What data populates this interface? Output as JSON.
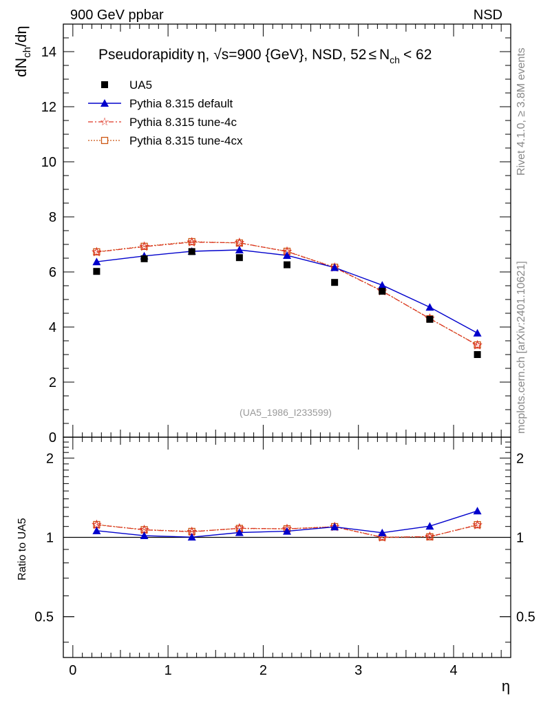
{
  "header": {
    "left": "900 GeV ppbar",
    "right": "NSD"
  },
  "side_text": {
    "rivet": "Rivet 4.1.0, ≥ 3.8M events",
    "mcplots": "mcplots.cern.ch [arXiv:2401.10621]"
  },
  "title": {
    "prefix": "Pseudorapidity",
    "eta": "η",
    "sqrt_s": "√s",
    "energy": "=900 {GeV}, NSD, 52",
    "le": "≤",
    "n": "N",
    "ch": "ch",
    "suffix": "< 62"
  },
  "source_label": "(UA5_1986_I233599)",
  "colors": {
    "data": "#000000",
    "default": "#0000cc",
    "tune4c": "#dd3322",
    "tune4cx": "#cc5511",
    "axis": "#000000",
    "side_text": "#888888"
  },
  "chart_data": [
    {
      "type": "scatter",
      "panel": "main",
      "ylabel": {
        "base": "dN",
        "sub": "ch",
        "rest": "/dη"
      },
      "xlim": [
        -0.1,
        4.6
      ],
      "ylim": [
        0,
        15
      ],
      "yticks": [
        {
          "v": 0,
          "label": "0"
        },
        {
          "v": 2,
          "label": "2"
        },
        {
          "v": 4,
          "label": "4"
        },
        {
          "v": 6,
          "label": "6"
        },
        {
          "v": 8,
          "label": "8"
        },
        {
          "v": 10,
          "label": "10"
        },
        {
          "v": 12,
          "label": "12"
        },
        {
          "v": 14,
          "label": "14"
        }
      ],
      "x": [
        0.25,
        0.75,
        1.25,
        1.75,
        2.25,
        2.75,
        3.25,
        3.75,
        4.25
      ],
      "series": [
        {
          "key": "ua5",
          "name": "UA5",
          "style": "data",
          "values": [
            6.02,
            6.48,
            6.74,
            6.52,
            6.26,
            5.62,
            5.3,
            4.28,
            3.0
          ]
        },
        {
          "key": "default",
          "name": "Pythia 8.315 default",
          "style": "line-triangle",
          "values": [
            6.37,
            6.58,
            6.75,
            6.8,
            6.6,
            6.16,
            5.52,
            4.72,
            3.78
          ]
        },
        {
          "key": "tune4c",
          "name": "Pythia 8.315 tune-4c",
          "style": "dashdot-star",
          "values": [
            6.72,
            6.92,
            7.08,
            7.06,
            6.74,
            6.16,
            5.3,
            4.31,
            3.34
          ]
        },
        {
          "key": "tune4cx",
          "name": "Pythia 8.315 tune-4cx",
          "style": "dotted-square",
          "values": [
            6.73,
            6.93,
            7.1,
            7.05,
            6.75,
            6.17,
            5.31,
            4.3,
            3.35
          ]
        }
      ]
    },
    {
      "type": "line",
      "panel": "ratio",
      "ylabel": "Ratio to UA5",
      "xlabel": "η",
      "xlim": [
        -0.1,
        4.6
      ],
      "ylim": [
        0.35,
        2.4
      ],
      "yscale": "log",
      "yticks": [
        {
          "v": 0.5,
          "label": "0.5"
        },
        {
          "v": 1,
          "label": "1"
        },
        {
          "v": 2,
          "label": "2"
        }
      ],
      "xticks": [
        {
          "v": 0,
          "label": "0"
        },
        {
          "v": 1,
          "label": "1"
        },
        {
          "v": 2,
          "label": "2"
        },
        {
          "v": 3,
          "label": "3"
        },
        {
          "v": 4,
          "label": "4"
        }
      ],
      "x": [
        0.25,
        0.75,
        1.25,
        1.75,
        2.25,
        2.75,
        3.25,
        3.75,
        4.25
      ],
      "series": [
        {
          "key": "default",
          "name": "Pythia 8.315 default",
          "values": [
            1.06,
            1.015,
            1.002,
            1.043,
            1.055,
            1.096,
            1.041,
            1.103,
            1.26
          ]
        },
        {
          "key": "tune4c",
          "name": "Pythia 8.315 tune-4c",
          "values": [
            1.116,
            1.068,
            1.05,
            1.083,
            1.077,
            1.096,
            1.0,
            1.007,
            1.113
          ]
        },
        {
          "key": "tune4cx",
          "name": "Pythia 8.315 tune-4cx",
          "values": [
            1.118,
            1.069,
            1.053,
            1.081,
            1.078,
            1.098,
            1.002,
            1.005,
            1.117
          ]
        }
      ]
    }
  ]
}
